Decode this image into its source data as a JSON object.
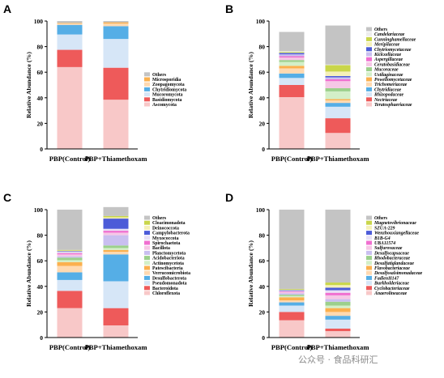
{
  "watermark": "公众号 · 食品科研汇",
  "chart_data": [
    {
      "type": "bar",
      "stacked": true,
      "panel_letter": "A",
      "ylabel": "Relative Abundance (%)",
      "ylim": [
        0,
        100
      ],
      "yticks": [
        0,
        20,
        40,
        60,
        80,
        100
      ],
      "categories": [
        "PBP(Control)",
        "PBP+Thiamethoxam"
      ],
      "legend_position": "right",
      "series": [
        {
          "name": "Ascomycota",
          "color": "#f8c8c8",
          "values": [
            64,
            38.5
          ]
        },
        {
          "name": "Basidiomycota",
          "color": "#ee5a5a",
          "values": [
            13.5,
            25
          ]
        },
        {
          "name": "Mucoromycota",
          "color": "#d6e6f7",
          "values": [
            12,
            22.5
          ]
        },
        {
          "name": "Chytridiomycota",
          "color": "#55aee6",
          "values": [
            7.5,
            10
          ]
        },
        {
          "name": "Zoopagomycota",
          "color": "#ffd9b0",
          "values": [
            1,
            2
          ]
        },
        {
          "name": "Microsporidia",
          "color": "#fbb04e",
          "values": [
            0.5,
            1
          ]
        },
        {
          "name": "Others",
          "color": "#c4c4c4",
          "values": [
            1.5,
            1
          ]
        }
      ]
    },
    {
      "type": "bar",
      "stacked": true,
      "panel_letter": "B",
      "ylabel": "Relative Abundance (%)",
      "ylim": [
        0,
        100
      ],
      "yticks": [
        0,
        20,
        40,
        60,
        80,
        100
      ],
      "categories": [
        "PBP(Control)",
        "PBP+Thiamethoxam"
      ],
      "legend_position": "right",
      "series": [
        {
          "name": "Teratosphaeriaceae",
          "color": "#f8c8c8",
          "values": [
            40.5,
            12.5
          ]
        },
        {
          "name": "Nectriaceae",
          "color": "#ee5a5a",
          "values": [
            9.5,
            11.5
          ]
        },
        {
          "name": "Rhizopodaceae",
          "color": "#d6e6f7",
          "values": [
            5.5,
            9
          ]
        },
        {
          "name": "Chytridiaceae",
          "color": "#55aee6",
          "values": [
            3.5,
            3
          ]
        },
        {
          "name": "Trichomeriaceae",
          "color": "#ffd9b0",
          "values": [
            4,
            2
          ]
        },
        {
          "name": "Powellomycetaceae",
          "color": "#fbb04e",
          "values": [
            2,
            1
          ]
        },
        {
          "name": "Ustilaginaceae",
          "color": "#d3efc8",
          "values": [
            3,
            6
          ]
        },
        {
          "name": "Mucoraceae",
          "color": "#9cd08c",
          "values": [
            1.5,
            2.5
          ]
        },
        {
          "name": "Ceratobasidiaceae",
          "color": "#f6c7e6",
          "values": [
            2,
            5.5
          ]
        },
        {
          "name": "Aspergillaceae",
          "color": "#f06fd0",
          "values": [
            1,
            1.5
          ]
        },
        {
          "name": "Kickxellaceae",
          "color": "#c9bff0",
          "values": [
            1.5,
            1.5
          ]
        },
        {
          "name": "Chytriomycetaceae",
          "color": "#4c5bd8",
          "values": [
            1,
            1
          ]
        },
        {
          "name": "Meripilaceae",
          "color": "#f5f0b8",
          "values": [
            0.5,
            3.5
          ]
        },
        {
          "name": "Cunninghamellaceae",
          "color": "#c9d64a",
          "values": [
            0.5,
            5
          ]
        },
        {
          "name": "Candelariaceae",
          "color": "#ededed",
          "values": [
            0.5,
            0.5
          ]
        },
        {
          "name": "Others",
          "color": "#c4c4c4",
          "values": [
            15,
            30.5
          ]
        }
      ]
    },
    {
      "type": "bar",
      "stacked": true,
      "panel_letter": "C",
      "ylabel": "Relative Abundance (%)",
      "ylim": [
        0,
        100
      ],
      "yticks": [
        0,
        20,
        40,
        60,
        80,
        100
      ],
      "categories": [
        "PBP(Control)",
        "PBP+Thiamethoxam"
      ],
      "legend_position": "right",
      "series": [
        {
          "name": "Chloroflexota",
          "color": "#f8c8c8",
          "values": [
            23,
            9.5
          ]
        },
        {
          "name": "Bacteroidota",
          "color": "#ee5a5a",
          "values": [
            13.5,
            13.5
          ]
        },
        {
          "name": "Pseudomonadota",
          "color": "#d6e6f7",
          "values": [
            8.5,
            21
          ]
        },
        {
          "name": "Desulfobacterota",
          "color": "#55aee6",
          "values": [
            6,
            21
          ]
        },
        {
          "name": "Verrucomicrobiota",
          "color": "#ffd9b0",
          "values": [
            5,
            2
          ]
        },
        {
          "name": "Patescibacteria",
          "color": "#fbb04e",
          "values": [
            3,
            1.5
          ]
        },
        {
          "name": "Actinomycetota",
          "color": "#d3efc8",
          "values": [
            1.5,
            1.5
          ]
        },
        {
          "name": "Acidobacteriota",
          "color": "#9cd08c",
          "values": [
            2,
            2
          ]
        },
        {
          "name": "Planctomycetota",
          "color": "#c9bff0",
          "values": [
            1,
            8
          ]
        },
        {
          "name": "Bacillota",
          "color": "#f6c7e6",
          "values": [
            1.5,
            2
          ]
        },
        {
          "name": "Spirochaetota",
          "color": "#f06fd0",
          "values": [
            1,
            1.5
          ]
        },
        {
          "name": "Myxococcota",
          "color": "#e8e0f6",
          "values": [
            1,
            1.5
          ]
        },
        {
          "name": "Campylobacterota",
          "color": "#4c5bd8",
          "values": [
            0.5,
            8
          ]
        },
        {
          "name": "Deinococcota",
          "color": "#f5f0b8",
          "values": [
            0.5,
            1
          ]
        },
        {
          "name": "Cloacimonadota",
          "color": "#c9d64a",
          "values": [
            0.5,
            1
          ]
        },
        {
          "name": "Others",
          "color": "#c4c4c4",
          "values": [
            31.5,
            7
          ]
        }
      ]
    },
    {
      "type": "bar",
      "stacked": true,
      "panel_letter": "D",
      "ylabel": "Relative Abundance (%)",
      "ylim": [
        0,
        100
      ],
      "yticks": [
        0,
        20,
        40,
        60,
        80,
        100
      ],
      "categories": [
        "PBP(Control)",
        "PBP+Thiamethoxam"
      ],
      "legend_position": "right",
      "series": [
        {
          "name": "Anaerolineaceae",
          "color": "#f8c8c8",
          "values": [
            13.5,
            5
          ]
        },
        {
          "name": "Cyclobacteriaceae",
          "color": "#ee5a5a",
          "values": [
            6.5,
            2
          ]
        },
        {
          "name": "Burkholderiaceae",
          "color": "#d6e6f7",
          "values": [
            5,
            7
          ]
        },
        {
          "name": "FadienH147",
          "color": "#55aee6",
          "values": [
            2.5,
            3
          ]
        },
        {
          "name": "Desulfosalsimonadaceae",
          "color": "#ffd9b0",
          "values": [
            1.5,
            3
          ]
        },
        {
          "name": "Flavobacteriaceae",
          "color": "#fbb04e",
          "values": [
            2.5,
            3
          ]
        },
        {
          "name": "Desulfatiglandaceae",
          "color": "#d3efc8",
          "values": [
            1,
            2
          ]
        },
        {
          "name": "Rhodobacteraceae",
          "color": "#9cd08c",
          "values": [
            1,
            3
          ]
        },
        {
          "name": "Desulfocapsaceae",
          "color": "#c9bff0",
          "values": [
            1,
            2
          ]
        },
        {
          "name": "Sulfurovaceae",
          "color": "#f6c7e6",
          "values": [
            1,
            3
          ]
        },
        {
          "name": "UBA11574",
          "color": "#f06fd0",
          "values": [
            0.5,
            2
          ]
        },
        {
          "name": "B1B-G4",
          "color": "#e8e0f6",
          "values": [
            0.5,
            2
          ]
        },
        {
          "name": "Wenzhouxiangellaceae",
          "color": "#4c5bd8",
          "values": [
            0.5,
            2
          ]
        },
        {
          "name": "SZUA-229",
          "color": "#f5f0b8",
          "values": [
            0.5,
            2
          ]
        },
        {
          "name": "Magnetovibrionaceae",
          "color": "#c9d64a",
          "values": [
            0.5,
            2
          ]
        },
        {
          "name": "Others",
          "color": "#c4c4c4",
          "values": [
            62,
            57
          ]
        }
      ]
    }
  ]
}
